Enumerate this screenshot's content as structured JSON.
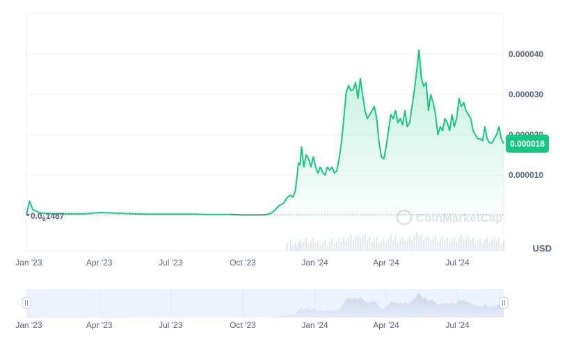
{
  "chart_data": {
    "type": "area",
    "currency": "USD",
    "x_ticks": [
      "Jan '23",
      "Apr '23",
      "Jul '23",
      "Oct '23",
      "Jan '24",
      "Apr '24",
      "Jul '24"
    ],
    "y_ticks": [
      "0.000010",
      "0.000020",
      "0.000030",
      "0.000040"
    ],
    "y_tick_values": [
      1e-05,
      2e-05,
      3e-05,
      4e-05
    ],
    "ylim": [
      0,
      5e-05
    ],
    "grid": true,
    "current_price_label": "0.000018",
    "current_price": 1.78e-05,
    "baseline_label_prefix": "0.0",
    "baseline_label_sub": "6",
    "baseline_label_suffix": "1487",
    "baseline_value": 1.487e-07,
    "watermark": "CoinMarketCap",
    "colors": {
      "line": "#16c784",
      "area_top": "#16c784",
      "volume": "#cfd6e4",
      "navigator_fill": "#dde4f3",
      "navigator_bg": "#eef2fb",
      "badge": "#16c784",
      "grid": "#eff2f5"
    },
    "x": [
      "2022-12-29",
      "2023-01-02",
      "2023-01-06",
      "2023-01-15",
      "2023-01-25",
      "2023-02-05",
      "2023-02-15",
      "2023-03-01",
      "2023-03-15",
      "2023-04-01",
      "2023-04-15",
      "2023-05-01",
      "2023-05-15",
      "2023-06-01",
      "2023-06-15",
      "2023-07-01",
      "2023-07-15",
      "2023-08-01",
      "2023-08-15",
      "2023-09-01",
      "2023-09-15",
      "2023-10-01",
      "2023-10-15",
      "2023-10-25",
      "2023-11-01",
      "2023-11-07",
      "2023-11-12",
      "2023-11-17",
      "2023-11-22",
      "2023-11-27",
      "2023-12-01",
      "2023-12-04",
      "2023-12-07",
      "2023-12-09",
      "2023-12-11",
      "2023-12-13",
      "2023-12-15",
      "2023-12-18",
      "2023-12-21",
      "2023-12-24",
      "2023-12-27",
      "2023-12-30",
      "2024-01-02",
      "2024-01-05",
      "2024-01-08",
      "2024-01-11",
      "2024-01-14",
      "2024-01-17",
      "2024-01-20",
      "2024-01-23",
      "2024-01-26",
      "2024-01-29",
      "2024-02-01",
      "2024-02-04",
      "2024-02-07",
      "2024-02-10",
      "2024-02-13",
      "2024-02-16",
      "2024-02-19",
      "2024-02-22",
      "2024-02-25",
      "2024-02-28",
      "2024-03-02",
      "2024-03-05",
      "2024-03-08",
      "2024-03-11",
      "2024-03-14",
      "2024-03-17",
      "2024-03-20",
      "2024-03-23",
      "2024-03-26",
      "2024-03-29",
      "2024-04-01",
      "2024-04-04",
      "2024-04-07",
      "2024-04-10",
      "2024-04-13",
      "2024-04-16",
      "2024-04-19",
      "2024-04-22",
      "2024-04-25",
      "2024-04-28",
      "2024-05-01",
      "2024-05-04",
      "2024-05-07",
      "2024-05-10",
      "2024-05-13",
      "2024-05-16",
      "2024-05-19",
      "2024-05-22",
      "2024-05-25",
      "2024-05-28",
      "2024-05-31",
      "2024-06-03",
      "2024-06-06",
      "2024-06-09",
      "2024-06-12",
      "2024-06-15",
      "2024-06-18",
      "2024-06-21",
      "2024-06-24",
      "2024-06-27",
      "2024-06-30",
      "2024-07-03",
      "2024-07-06",
      "2024-07-09",
      "2024-07-12",
      "2024-07-15",
      "2024-07-18",
      "2024-07-21",
      "2024-07-24",
      "2024-07-27",
      "2024-07-30",
      "2024-08-02",
      "2024-08-05",
      "2024-08-08",
      "2024-08-11",
      "2024-08-14",
      "2024-08-17",
      "2024-08-20",
      "2024-08-23",
      "2024-08-26",
      "2024-08-29"
    ],
    "y": [
      3e-07,
      3.5e-06,
      1.5e-06,
      6e-07,
      5e-07,
      4e-07,
      4e-07,
      4e-07,
      4e-07,
      7e-07,
      6e-07,
      5e-07,
      4e-07,
      3e-07,
      3e-07,
      3e-07,
      3e-07,
      3e-07,
      2e-07,
      2e-07,
      2e-07,
      1e-07,
      1e-07,
      1e-07,
      2e-07,
      6e-07,
      1.5e-06,
      2.5e-06,
      3e-06,
      4.5e-06,
      5e-06,
      4.5e-06,
      6e-06,
      9e-06,
      1.3e-05,
      1.25e-05,
      1.7e-05,
      1.2e-05,
      1.5e-05,
      1.4e-05,
      1.2e-05,
      1.45e-05,
      1.2e-05,
      1.05e-05,
      1.2e-05,
      1.07e-05,
      1e-05,
      1.2e-05,
      1.12e-05,
      1.2e-05,
      1.05e-05,
      1.1e-05,
      1.4e-05,
      1.8e-05,
      2.4e-05,
      3.05e-05,
      3.22e-05,
      3.1e-05,
      3.12e-05,
      3.3e-05,
      2.9e-05,
      3.4e-05,
      3e-05,
      2.6e-05,
      2.4e-05,
      2.5e-05,
      2.6e-05,
      2.7e-05,
      2.4e-05,
      1.8e-05,
      1.45e-05,
      1.4e-05,
      1.7e-05,
      2.1e-05,
      2.5e-05,
      2.4e-05,
      2.6e-05,
      2.3e-05,
      2.4e-05,
      2.25e-05,
      2.6e-05,
      2.2e-05,
      2.3e-05,
      2.7e-05,
      3.1e-05,
      3.6e-05,
      4.1e-05,
      3.4e-05,
      3.2e-05,
      3.3e-05,
      2.6e-05,
      3e-05,
      2.8e-05,
      2.5e-05,
      2e-05,
      2.2e-05,
      2.1e-05,
      2.4e-05,
      2.3e-05,
      2.1e-05,
      2.5e-05,
      2.2e-05,
      2.4e-05,
      2.9e-05,
      2.7e-05,
      2.8e-05,
      2.6e-05,
      2.5e-05,
      2.4e-05,
      2.1e-05,
      2e-05,
      1.9e-05,
      1.9e-05,
      1.85e-05,
      2.2e-05,
      1.9e-05,
      1.8e-05,
      1.8e-05,
      1.9e-05,
      2e-05,
      2.2e-05,
      1.9e-05,
      1.78e-05
    ]
  }
}
